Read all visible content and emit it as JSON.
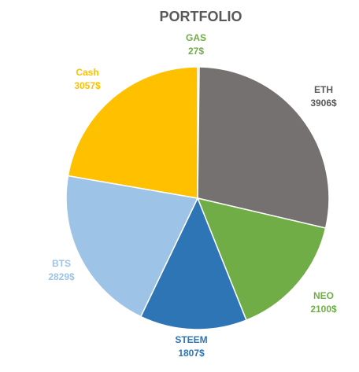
{
  "chart_data": {
    "type": "pie",
    "title": "PORTFOLIO",
    "start": "top, clockwise",
    "slices": [
      {
        "name": "GAS",
        "value": 27,
        "label_value": "27$",
        "color": "#70AD47"
      },
      {
        "name": "ETH",
        "value": 3906,
        "label_value": "3906$",
        "color": "#767171"
      },
      {
        "name": "NEO",
        "value": 2100,
        "label_value": "2100$",
        "color": "#70AD47"
      },
      {
        "name": "STEEM",
        "value": 1807,
        "label_value": "1807$",
        "color": "#2E75B6"
      },
      {
        "name": "BTS",
        "value": 2829,
        "label_value": "2829$",
        "color": "#9DC3E6"
      },
      {
        "name": "Cash",
        "value": 3057,
        "label_value": "3057$",
        "color": "#FFC000"
      }
    ],
    "legend": "none",
    "border_color": "#ffffff"
  }
}
